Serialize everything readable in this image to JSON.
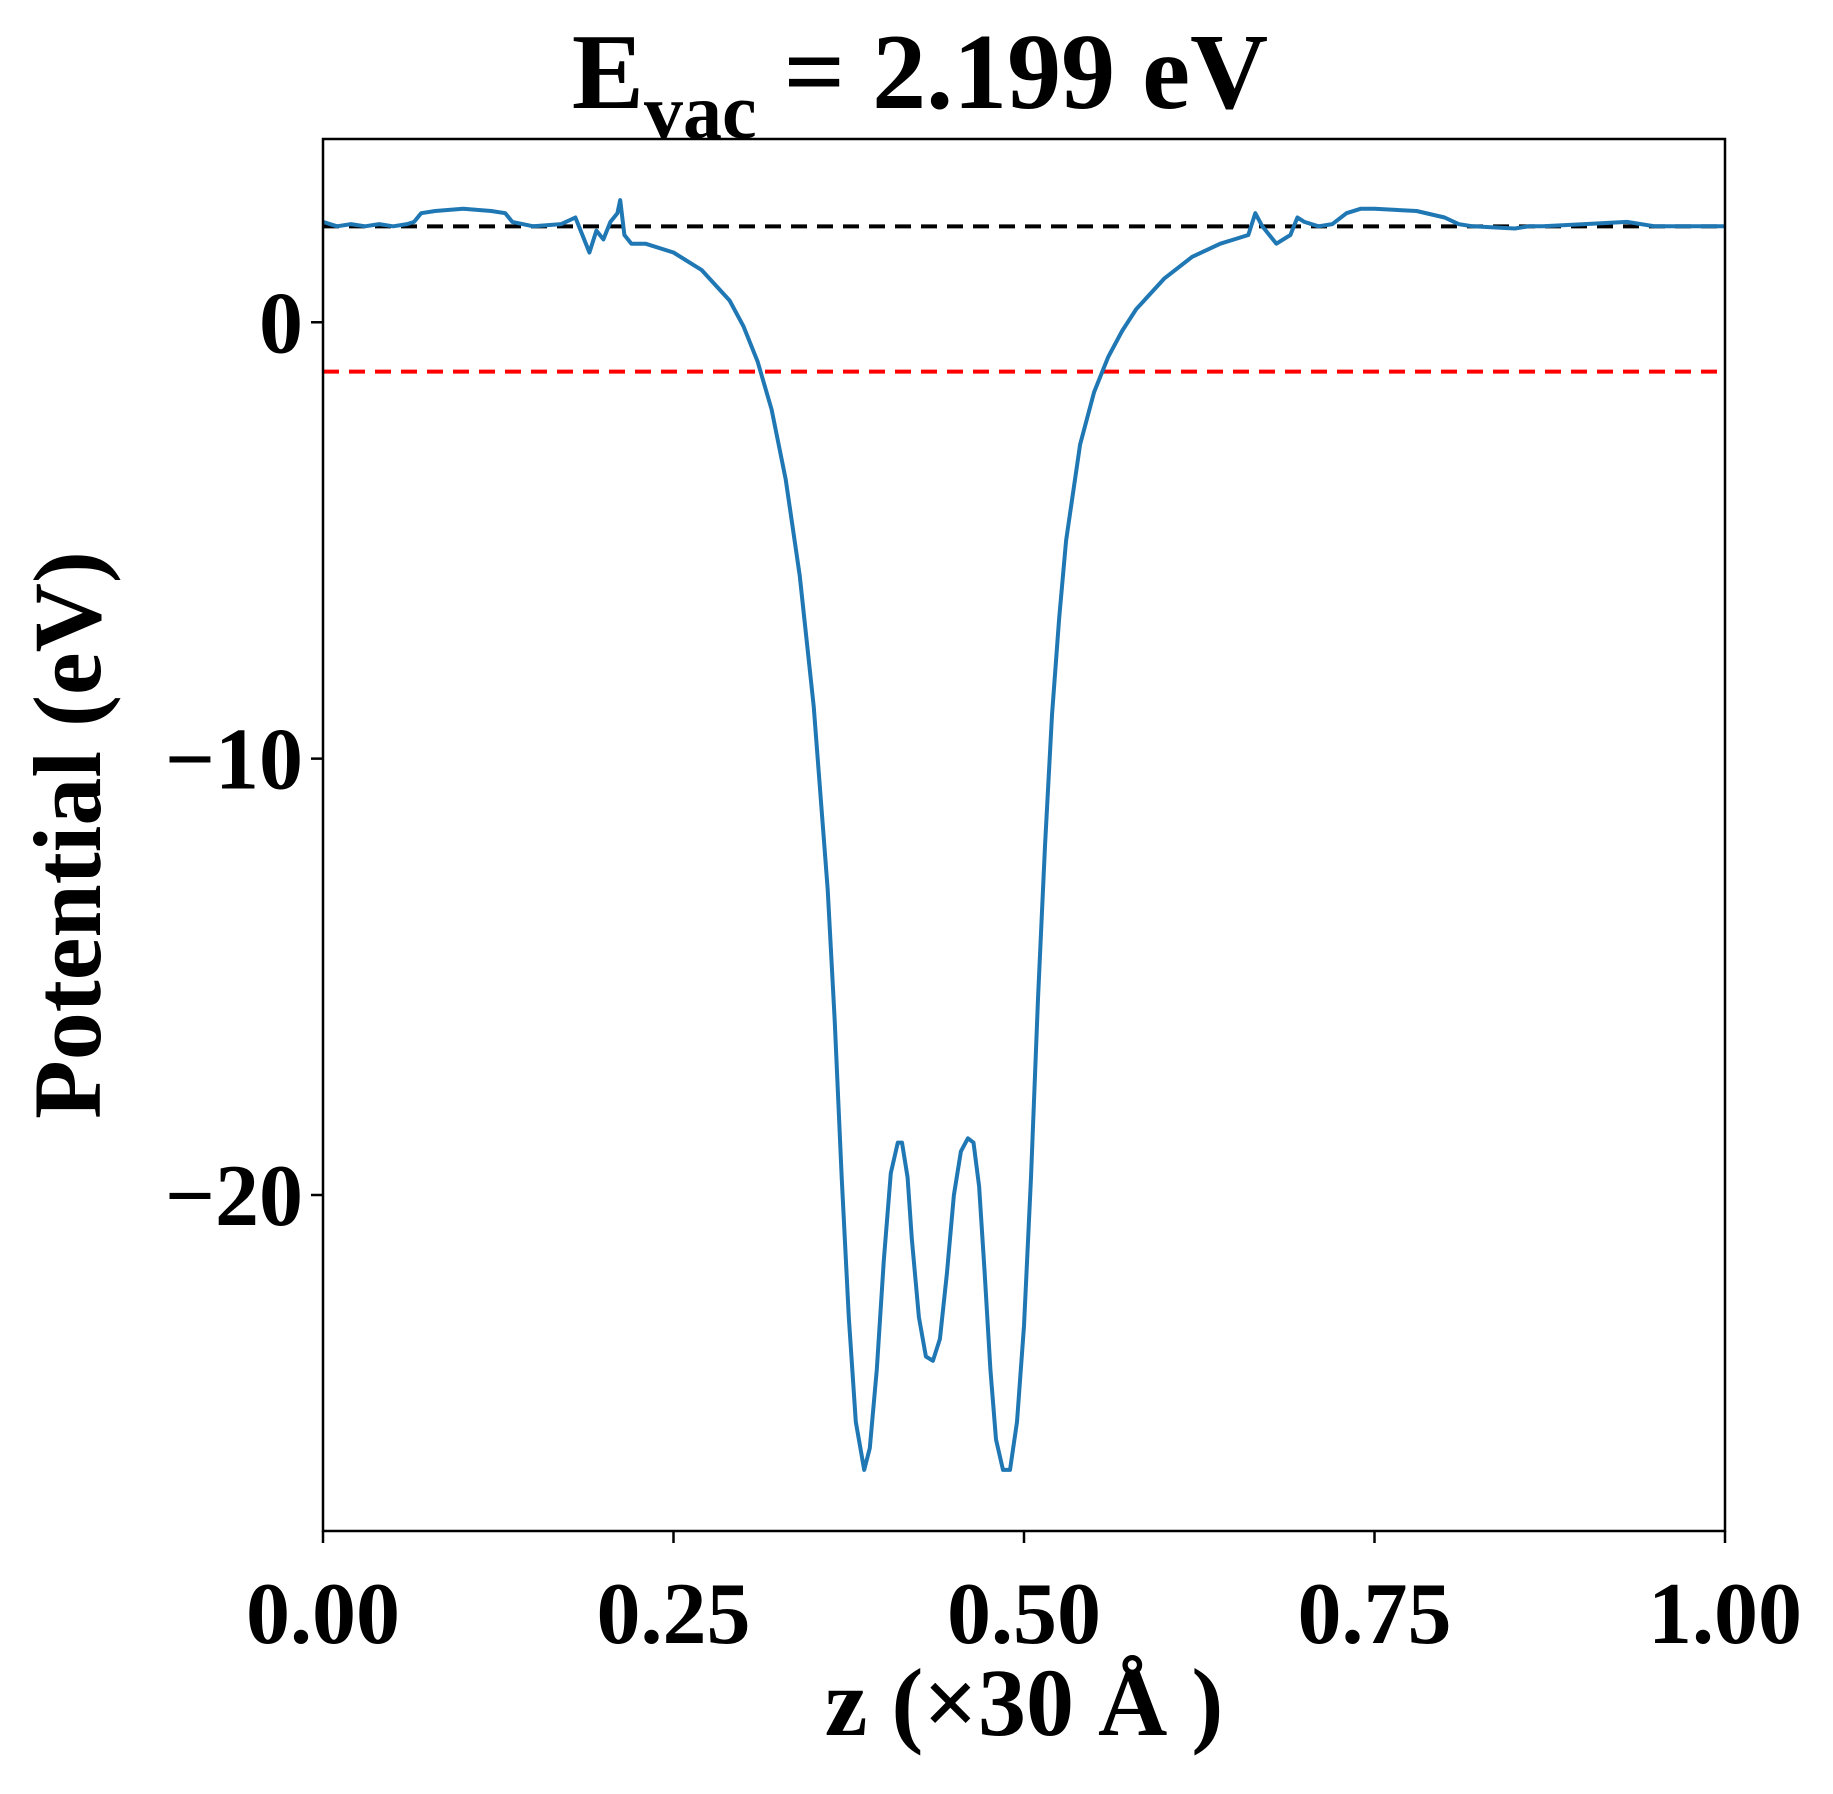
{
  "chart_data": {
    "type": "line",
    "title": "E",
    "title_sub": "vac",
    "title_rest": " = 2.199 eV",
    "xlabel": "z (×30 Å )",
    "ylabel": "Potential (eV)",
    "xlim": [
      0,
      1
    ],
    "ylim": [
      -27.7,
      4.2
    ],
    "xticks": [
      0,
      0.25,
      0.5,
      0.75,
      1.0
    ],
    "xtick_labels": [
      "0.00",
      "0.25",
      "0.50",
      "0.75",
      "1.00"
    ],
    "yticks": [
      0,
      -10,
      -20
    ],
    "ytick_labels": [
      "0",
      "−10",
      "−20"
    ],
    "grid": false,
    "hlines": [
      {
        "name": "vacuum-level",
        "y": 2.199,
        "color": "#000000"
      },
      {
        "name": "fermi-level",
        "y": -1.13,
        "color": "#ff0000"
      }
    ],
    "series": [
      {
        "name": "potential",
        "color": "#1f77b4",
        "x": [
          0,
          0.01,
          0.02,
          0.03,
          0.04,
          0.05,
          0.06,
          0.065,
          0.07,
          0.08,
          0.1,
          0.12,
          0.13,
          0.135,
          0.15,
          0.17,
          0.18,
          0.185,
          0.19,
          0.195,
          0.2,
          0.205,
          0.21,
          0.212,
          0.215,
          0.22,
          0.23,
          0.25,
          0.27,
          0.29,
          0.3,
          0.31,
          0.32,
          0.33,
          0.34,
          0.35,
          0.36,
          0.365,
          0.37,
          0.375,
          0.38,
          0.386,
          0.39,
          0.395,
          0.4,
          0.405,
          0.41,
          0.413,
          0.417,
          0.42,
          0.425,
          0.43,
          0.435,
          0.44,
          0.445,
          0.45,
          0.455,
          0.46,
          0.464,
          0.468,
          0.472,
          0.476,
          0.48,
          0.485,
          0.49,
          0.495,
          0.5,
          0.505,
          0.51,
          0.515,
          0.52,
          0.525,
          0.53,
          0.54,
          0.55,
          0.56,
          0.57,
          0.58,
          0.6,
          0.62,
          0.64,
          0.65,
          0.66,
          0.665,
          0.67,
          0.68,
          0.69,
          0.695,
          0.7,
          0.71,
          0.72,
          0.73,
          0.74,
          0.75,
          0.78,
          0.8,
          0.81,
          0.82,
          0.85,
          0.86,
          0.87,
          0.9,
          0.93,
          0.95,
          0.97,
          1.0
        ],
        "y": [
          2.3,
          2.2,
          2.25,
          2.2,
          2.25,
          2.2,
          2.25,
          2.3,
          2.5,
          2.55,
          2.6,
          2.55,
          2.5,
          2.3,
          2.2,
          2.25,
          2.4,
          2.0,
          1.6,
          2.1,
          1.9,
          2.3,
          2.5,
          2.8,
          2.0,
          1.8,
          1.8,
          1.6,
          1.2,
          0.5,
          -0.1,
          -0.9,
          -2.0,
          -3.6,
          -5.8,
          -8.8,
          -13.0,
          -16.0,
          -19.6,
          -22.8,
          -25.2,
          -26.3,
          -25.8,
          -24.0,
          -21.5,
          -19.5,
          -18.8,
          -18.8,
          -19.6,
          -21.0,
          -22.8,
          -23.7,
          -23.8,
          -23.3,
          -21.8,
          -20.0,
          -19.0,
          -18.7,
          -18.8,
          -19.8,
          -21.8,
          -24.0,
          -25.6,
          -26.3,
          -26.3,
          -25.2,
          -23.0,
          -19.6,
          -15.5,
          -12.0,
          -9.0,
          -6.8,
          -5.0,
          -2.8,
          -1.6,
          -0.8,
          -0.2,
          0.3,
          1.0,
          1.5,
          1.8,
          1.9,
          2.0,
          2.5,
          2.2,
          1.8,
          2.0,
          2.4,
          2.3,
          2.2,
          2.25,
          2.5,
          2.6,
          2.6,
          2.55,
          2.4,
          2.25,
          2.2,
          2.15,
          2.2,
          2.2,
          2.25,
          2.3,
          2.2,
          2.2,
          2.2
        ]
      }
    ]
  }
}
